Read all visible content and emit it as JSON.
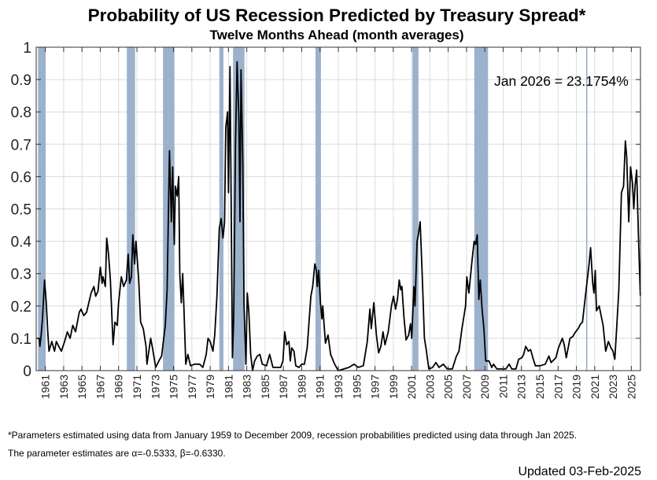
{
  "chart_data": {
    "type": "line",
    "title": "Probability of US Recession Predicted by Treasury Spread*",
    "subtitle": "Twelve Months Ahead (month averages)",
    "xlabel": "",
    "ylabel": "",
    "xlim": [
      1960,
      2026
    ],
    "ylim": [
      0,
      1
    ],
    "grid": true,
    "x_ticks": [
      1961,
      1963,
      1965,
      1967,
      1969,
      1971,
      1973,
      1975,
      1977,
      1979,
      1981,
      1983,
      1985,
      1987,
      1989,
      1991,
      1993,
      1995,
      1997,
      1999,
      2001,
      2003,
      2005,
      2007,
      2009,
      2011,
      2013,
      2015,
      2017,
      2019,
      2021,
      2023,
      2025
    ],
    "y_ticks": [
      0,
      0.1,
      0.2,
      0.3,
      0.4,
      0.5,
      0.6,
      0.7,
      0.8,
      0.9,
      1
    ],
    "y_tick_labels": [
      "0",
      "0.1",
      "0.2",
      "0.3",
      "0.4",
      "0.5",
      "0.6",
      "0.7",
      "0.8",
      "0.9",
      "1"
    ],
    "annotation": "Jan 2026 = 23.1754%",
    "recession_color": "#9bb1cc",
    "line_color": "#000000",
    "recessions": [
      [
        1960.2,
        1961.03
      ],
      [
        1969.9,
        1970.8
      ],
      [
        1973.85,
        1975.1
      ],
      [
        1980.0,
        1980.45
      ],
      [
        1981.5,
        1982.75
      ],
      [
        1990.5,
        1991.1
      ],
      [
        2001.1,
        2001.75
      ],
      [
        2007.85,
        2009.35
      ],
      [
        2020.06,
        2020.2
      ]
    ],
    "series": [
      {
        "name": "Recession probability",
        "points": [
          [
            1960.06,
            0.1
          ],
          [
            1960.34,
            0.1
          ],
          [
            1960.4,
            0.075
          ],
          [
            1960.54,
            0.11
          ],
          [
            1960.69,
            0.16
          ],
          [
            1960.91,
            0.28
          ],
          [
            1961.1,
            0.21
          ],
          [
            1961.26,
            0.12
          ],
          [
            1961.4,
            0.06
          ],
          [
            1961.7,
            0.09
          ],
          [
            1962.0,
            0.06
          ],
          [
            1962.2,
            0.09
          ],
          [
            1962.55,
            0.07
          ],
          [
            1962.75,
            0.06
          ],
          [
            1963.1,
            0.09
          ],
          [
            1963.4,
            0.12
          ],
          [
            1963.7,
            0.1
          ],
          [
            1964.0,
            0.14
          ],
          [
            1964.3,
            0.12
          ],
          [
            1964.7,
            0.18
          ],
          [
            1964.9,
            0.19
          ],
          [
            1965.2,
            0.17
          ],
          [
            1965.5,
            0.18
          ],
          [
            1966.0,
            0.24
          ],
          [
            1966.3,
            0.26
          ],
          [
            1966.5,
            0.23
          ],
          [
            1966.75,
            0.245
          ],
          [
            1967.0,
            0.32
          ],
          [
            1967.2,
            0.27
          ],
          [
            1967.3,
            0.29
          ],
          [
            1967.55,
            0.26
          ],
          [
            1967.7,
            0.41
          ],
          [
            1967.9,
            0.36
          ],
          [
            1968.1,
            0.28
          ],
          [
            1968.4,
            0.08
          ],
          [
            1968.6,
            0.15
          ],
          [
            1968.85,
            0.14
          ],
          [
            1969.0,
            0.21
          ],
          [
            1969.3,
            0.29
          ],
          [
            1969.55,
            0.26
          ],
          [
            1969.85,
            0.28
          ],
          [
            1970.05,
            0.36
          ],
          [
            1970.2,
            0.27
          ],
          [
            1970.4,
            0.29
          ],
          [
            1970.55,
            0.42
          ],
          [
            1970.75,
            0.33
          ],
          [
            1970.9,
            0.4
          ],
          [
            1971.2,
            0.28
          ],
          [
            1971.4,
            0.15
          ],
          [
            1971.7,
            0.13
          ],
          [
            1972.0,
            0.075
          ],
          [
            1972.1,
            0.02
          ],
          [
            1972.5,
            0.1
          ],
          [
            1972.7,
            0.07
          ],
          [
            1973.05,
            0.01
          ],
          [
            1973.4,
            0.03
          ],
          [
            1973.7,
            0.045
          ],
          [
            1974.1,
            0.14
          ],
          [
            1974.3,
            0.25
          ],
          [
            1974.56,
            0.68
          ],
          [
            1974.76,
            0.46
          ],
          [
            1974.9,
            0.63
          ],
          [
            1975.08,
            0.39
          ],
          [
            1975.2,
            0.57
          ],
          [
            1975.4,
            0.54
          ],
          [
            1975.56,
            0.6
          ],
          [
            1975.68,
            0.3
          ],
          [
            1975.85,
            0.21
          ],
          [
            1976.0,
            0.3
          ],
          [
            1976.14,
            0.19
          ],
          [
            1976.34,
            0.02
          ],
          [
            1976.57,
            0.05
          ],
          [
            1976.85,
            0.015
          ],
          [
            1977.3,
            0.02
          ],
          [
            1977.85,
            0.02
          ],
          [
            1978.2,
            0.01
          ],
          [
            1978.57,
            0.05
          ],
          [
            1978.77,
            0.1
          ],
          [
            1979.0,
            0.09
          ],
          [
            1979.3,
            0.06
          ],
          [
            1979.5,
            0.11
          ],
          [
            1979.74,
            0.23
          ],
          [
            1980.0,
            0.44
          ],
          [
            1980.2,
            0.47
          ],
          [
            1980.4,
            0.41
          ],
          [
            1980.57,
            0.46
          ],
          [
            1980.7,
            0.75
          ],
          [
            1980.9,
            0.8
          ],
          [
            1981.0,
            0.55
          ],
          [
            1981.17,
            0.94
          ],
          [
            1981.29,
            0.55
          ],
          [
            1981.43,
            0.04
          ],
          [
            1981.57,
            0.16
          ],
          [
            1981.77,
            0.7
          ],
          [
            1981.94,
            0.955
          ],
          [
            1982.14,
            0.78
          ],
          [
            1982.26,
            0.46
          ],
          [
            1982.37,
            0.93
          ],
          [
            1982.57,
            0.64
          ],
          [
            1982.7,
            0.21
          ],
          [
            1982.9,
            0.02
          ],
          [
            1983.06,
            0.24
          ],
          [
            1983.23,
            0.18
          ],
          [
            1983.43,
            0.05
          ],
          [
            1983.63,
            0.0
          ],
          [
            1983.86,
            0.03
          ],
          [
            1984.15,
            0.045
          ],
          [
            1984.43,
            0.05
          ],
          [
            1984.7,
            0.02
          ],
          [
            1985.15,
            0.015
          ],
          [
            1985.5,
            0.05
          ],
          [
            1985.86,
            0.01
          ],
          [
            1986.7,
            0.01
          ],
          [
            1986.95,
            0.03
          ],
          [
            1987.15,
            0.12
          ],
          [
            1987.35,
            0.08
          ],
          [
            1987.6,
            0.09
          ],
          [
            1987.75,
            0.03
          ],
          [
            1987.9,
            0.07
          ],
          [
            1988.15,
            0.06
          ],
          [
            1988.35,
            0.015
          ],
          [
            1988.7,
            0.01
          ],
          [
            1989.0,
            0.02
          ],
          [
            1989.3,
            0.02
          ],
          [
            1989.6,
            0.07
          ],
          [
            1990.0,
            0.23
          ],
          [
            1990.2,
            0.26
          ],
          [
            1990.43,
            0.33
          ],
          [
            1990.6,
            0.31
          ],
          [
            1990.7,
            0.26
          ],
          [
            1990.85,
            0.31
          ],
          [
            1991.05,
            0.21
          ],
          [
            1991.2,
            0.16
          ],
          [
            1991.3,
            0.2
          ],
          [
            1991.59,
            0.085
          ],
          [
            1991.87,
            0.11
          ],
          [
            1992.16,
            0.05
          ],
          [
            1992.6,
            0.02
          ],
          [
            1993.0,
            0.0
          ],
          [
            1994.16,
            0.01
          ],
          [
            1994.73,
            0.02
          ],
          [
            1995.16,
            0.01
          ],
          [
            1995.73,
            0.015
          ],
          [
            1996.16,
            0.09
          ],
          [
            1996.45,
            0.19
          ],
          [
            1996.6,
            0.13
          ],
          [
            1996.88,
            0.21
          ],
          [
            1997.16,
            0.11
          ],
          [
            1997.4,
            0.055
          ],
          [
            1997.65,
            0.075
          ],
          [
            1997.88,
            0.12
          ],
          [
            1998.1,
            0.08
          ],
          [
            1998.45,
            0.12
          ],
          [
            1998.8,
            0.2
          ],
          [
            1999.02,
            0.23
          ],
          [
            1999.25,
            0.19
          ],
          [
            1999.45,
            0.22
          ],
          [
            1999.65,
            0.28
          ],
          [
            1999.82,
            0.25
          ],
          [
            1999.94,
            0.26
          ],
          [
            2000.17,
            0.165
          ],
          [
            2000.4,
            0.095
          ],
          [
            2000.68,
            0.11
          ],
          [
            2000.88,
            0.145
          ],
          [
            2001.02,
            0.1
          ],
          [
            2001.25,
            0.26
          ],
          [
            2001.37,
            0.2
          ],
          [
            2001.6,
            0.4
          ],
          [
            2001.74,
            0.42
          ],
          [
            2001.94,
            0.46
          ],
          [
            2002.17,
            0.29
          ],
          [
            2002.4,
            0.1
          ],
          [
            2002.6,
            0.065
          ],
          [
            2002.88,
            0.005
          ],
          [
            2003.3,
            0.01
          ],
          [
            2003.66,
            0.025
          ],
          [
            2004.0,
            0.01
          ],
          [
            2004.46,
            0.02
          ],
          [
            2004.9,
            0.005
          ],
          [
            2005.45,
            0.005
          ],
          [
            2005.9,
            0.045
          ],
          [
            2006.17,
            0.06
          ],
          [
            2006.5,
            0.13
          ],
          [
            2006.9,
            0.2
          ],
          [
            2007.03,
            0.29
          ],
          [
            2007.26,
            0.24
          ],
          [
            2007.6,
            0.34
          ],
          [
            2007.83,
            0.4
          ],
          [
            2008.0,
            0.39
          ],
          [
            2008.17,
            0.42
          ],
          [
            2008.35,
            0.22
          ],
          [
            2008.5,
            0.28
          ],
          [
            2008.7,
            0.19
          ],
          [
            2008.9,
            0.13
          ],
          [
            2009.1,
            0.03
          ],
          [
            2009.46,
            0.03
          ],
          [
            2009.75,
            0.01
          ],
          [
            2009.95,
            0.02
          ],
          [
            2010.32,
            0.005
          ],
          [
            2011.3,
            0.005
          ],
          [
            2011.66,
            0.02
          ],
          [
            2011.95,
            0.005
          ],
          [
            2012.4,
            0.005
          ],
          [
            2012.7,
            0.035
          ],
          [
            2013.04,
            0.04
          ],
          [
            2013.24,
            0.05
          ],
          [
            2013.47,
            0.075
          ],
          [
            2013.75,
            0.06
          ],
          [
            2014.0,
            0.065
          ],
          [
            2014.24,
            0.04
          ],
          [
            2014.52,
            0.015
          ],
          [
            2015.04,
            0.015
          ],
          [
            2015.6,
            0.02
          ],
          [
            2016.0,
            0.045
          ],
          [
            2016.24,
            0.025
          ],
          [
            2016.76,
            0.04
          ],
          [
            2017.04,
            0.07
          ],
          [
            2017.47,
            0.1
          ],
          [
            2017.67,
            0.08
          ],
          [
            2017.9,
            0.04
          ],
          [
            2018.3,
            0.1
          ],
          [
            2018.6,
            0.105
          ],
          [
            2018.8,
            0.115
          ],
          [
            2019.19,
            0.13
          ],
          [
            2019.47,
            0.145
          ],
          [
            2019.67,
            0.15
          ],
          [
            2020.06,
            0.25
          ],
          [
            2020.35,
            0.32
          ],
          [
            2020.55,
            0.38
          ],
          [
            2020.78,
            0.27
          ],
          [
            2020.92,
            0.24
          ],
          [
            2021.06,
            0.31
          ],
          [
            2021.2,
            0.185
          ],
          [
            2021.49,
            0.2
          ],
          [
            2021.92,
            0.14
          ],
          [
            2022.2,
            0.06
          ],
          [
            2022.49,
            0.09
          ],
          [
            2022.78,
            0.07
          ],
          [
            2023.0,
            0.06
          ],
          [
            2023.2,
            0.035
          ],
          [
            2023.4,
            0.13
          ],
          [
            2023.64,
            0.25
          ],
          [
            2023.92,
            0.55
          ],
          [
            2024.15,
            0.57
          ],
          [
            2024.35,
            0.71
          ],
          [
            2024.5,
            0.66
          ],
          [
            2024.72,
            0.46
          ],
          [
            2024.92,
            0.63
          ],
          [
            2025.12,
            0.58
          ],
          [
            2025.27,
            0.5
          ],
          [
            2025.41,
            0.57
          ],
          [
            2025.58,
            0.62
          ],
          [
            2025.78,
            0.42
          ],
          [
            2025.98,
            0.232
          ]
        ]
      }
    ]
  },
  "footnote": {
    "line1": "*Parameters estimated using data from January 1959 to December 2009, recession probabilities predicted using data through Jan 2025.",
    "line2": "The parameter estimates are α=-0.5333, β=-0.6330."
  },
  "updated": "Updated 03-Feb-2025"
}
